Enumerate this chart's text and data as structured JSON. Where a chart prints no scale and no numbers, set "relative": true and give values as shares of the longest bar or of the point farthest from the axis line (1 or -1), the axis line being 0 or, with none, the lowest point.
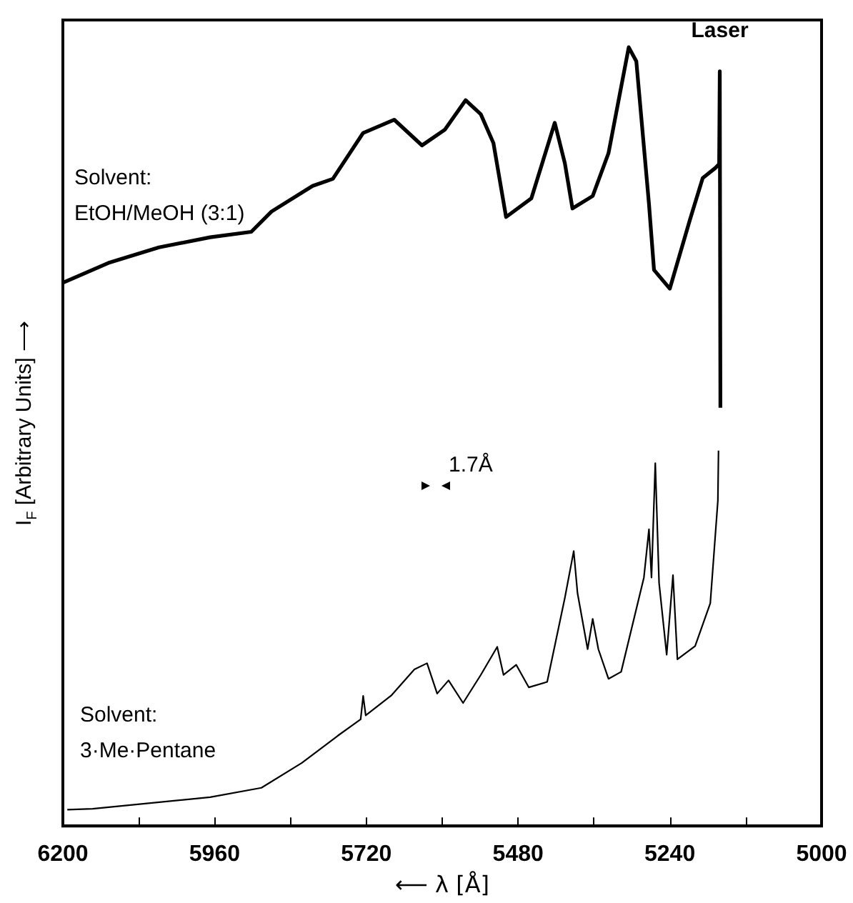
{
  "chart_data": {
    "type": "line",
    "relative": true,
    "xlabel": "⟵ λ [Å]",
    "ylabel": "I$_{F}$ [Arbitrary Units] ⟶",
    "xlim": [
      6200,
      5000
    ],
    "xticks": [
      6200,
      {
        "value": 6080,
        "label": null
      },
      5960,
      {
        "value": 5840,
        "label": null
      },
      5720,
      {
        "value": 5600,
        "label": null
      },
      5480,
      {
        "value": 5360,
        "label": null
      },
      5240,
      {
        "value": 5120,
        "label": null
      },
      5000
    ],
    "grid": false,
    "legend": false,
    "marker": "none",
    "line_style": "solid",
    "annotations": [
      {
        "text": "Laser",
        "x": 5161,
        "y": 0.969
      },
      "1.7Å"
    ],
    "series": [
      {
        "name": "Solvent:\nEtOH/MeOH (3:1)",
        "color": "#000000",
        "x": [
          6199,
          6128,
          6048,
          5967,
          5902,
          5870,
          5805,
          5773,
          5725,
          5676,
          5632,
          5596,
          5563,
          5539,
          5519,
          5499,
          5459,
          5422,
          5406,
          5394,
          5362,
          5337,
          5305,
          5293,
          5273,
          5265,
          5240,
          5208,
          5188,
          5168,
          5162,
          5161,
          5160
        ],
        "values": [
          0.698,
          0.723,
          0.743,
          0.756,
          0.763,
          0.789,
          0.822,
          0.831,
          0.89,
          0.907,
          0.874,
          0.894,
          0.932,
          0.914,
          0.877,
          0.782,
          0.806,
          0.903,
          0.851,
          0.793,
          0.809,
          0.864,
          1.0,
          0.982,
          0.799,
          0.714,
          0.69,
          0.779,
          0.832,
          0.845,
          0.85,
          0.969,
          0.537
        ]
      },
      {
        "name": "Solvent:\n3·Me·Pentane",
        "color": "#000000",
        "x": [
          6193,
          6153,
          5967,
          5886,
          5822,
          5765,
          5729,
          5725,
          5721,
          5680,
          5644,
          5624,
          5608,
          5590,
          5567,
          5539,
          5513,
          5503,
          5483,
          5463,
          5434,
          5406,
          5392,
          5386,
          5370,
          5362,
          5353,
          5337,
          5317,
          5281,
          5273,
          5269,
          5263,
          5257,
          5245,
          5235,
          5228,
          5200,
          5176,
          5164,
          5163
        ],
        "values": [
          0.021,
          0.022,
          0.037,
          0.049,
          0.081,
          0.116,
          0.137,
          0.167,
          0.142,
          0.168,
          0.201,
          0.209,
          0.17,
          0.187,
          0.158,
          0.194,
          0.23,
          0.194,
          0.207,
          0.178,
          0.185,
          0.293,
          0.353,
          0.299,
          0.227,
          0.266,
          0.227,
          0.189,
          0.198,
          0.319,
          0.381,
          0.319,
          0.466,
          0.312,
          0.22,
          0.322,
          0.214,
          0.231,
          0.286,
          0.418,
          0.482
        ]
      }
    ]
  }
}
